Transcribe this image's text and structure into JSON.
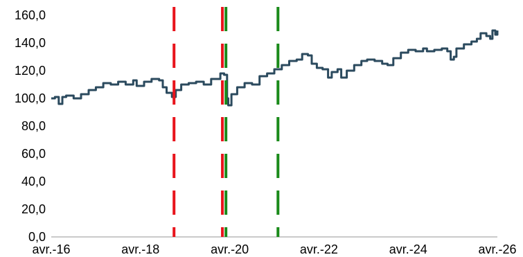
{
  "chart_data": {
    "type": "line",
    "title": "",
    "xlabel": "",
    "ylabel": "",
    "xlim": [
      "2016-04-01",
      "2026-04-01"
    ],
    "ylim": [
      0,
      160
    ],
    "grid": false,
    "legend": "none",
    "y_ticks": [
      0,
      20,
      40,
      60,
      80,
      100,
      120,
      140,
      160
    ],
    "y_tick_labels": [
      "0,0",
      "20,0",
      "40,0",
      "60,0",
      "80,0",
      "100,0",
      "120,0",
      "140,0",
      "160,0"
    ],
    "x_ticks": [
      "2016-04-01",
      "2018-04-01",
      "2020-04-01",
      "2022-04-01",
      "2024-04-01",
      "2026-04-01"
    ],
    "x_tick_labels": [
      "avr.-16",
      "avr.-18",
      "avr.-20",
      "avr.-22",
      "avr.-24",
      "avr.-26"
    ],
    "series": [
      {
        "color": "#2b4a5e",
        "points": [
          [
            "2016-04-01",
            100
          ],
          [
            "2016-05-01",
            101
          ],
          [
            "2016-06-01",
            96
          ],
          [
            "2016-07-01",
            101
          ],
          [
            "2016-08-01",
            102
          ],
          [
            "2016-10-01",
            100
          ],
          [
            "2016-12-01",
            103
          ],
          [
            "2017-02-01",
            106
          ],
          [
            "2017-04-01",
            108
          ],
          [
            "2017-06-01",
            111
          ],
          [
            "2017-08-01",
            110
          ],
          [
            "2017-10-01",
            112
          ],
          [
            "2017-12-01",
            110
          ],
          [
            "2018-02-01",
            113
          ],
          [
            "2018-03-01",
            109
          ],
          [
            "2018-05-01",
            112
          ],
          [
            "2018-07-01",
            114
          ],
          [
            "2018-09-01",
            113
          ],
          [
            "2018-10-01",
            108
          ],
          [
            "2018-11-01",
            104
          ],
          [
            "2018-12-15",
            101
          ],
          [
            "2019-01-15",
            106
          ],
          [
            "2019-03-01",
            110
          ],
          [
            "2019-05-01",
            111
          ],
          [
            "2019-07-01",
            112
          ],
          [
            "2019-09-01",
            110
          ],
          [
            "2019-11-01",
            114
          ],
          [
            "2020-01-15",
            118
          ],
          [
            "2020-02-15",
            117
          ],
          [
            "2020-03-10",
            100
          ],
          [
            "2020-03-20",
            95
          ],
          [
            "2020-04-15",
            103
          ],
          [
            "2020-06-01",
            108
          ],
          [
            "2020-08-01",
            111
          ],
          [
            "2020-10-01",
            110
          ],
          [
            "2020-12-01",
            116
          ],
          [
            "2021-02-01",
            118
          ],
          [
            "2021-04-01",
            121
          ],
          [
            "2021-06-01",
            124
          ],
          [
            "2021-08-01",
            127
          ],
          [
            "2021-10-01",
            128
          ],
          [
            "2021-11-15",
            132
          ],
          [
            "2022-01-01",
            131
          ],
          [
            "2022-02-01",
            125
          ],
          [
            "2022-03-15",
            122
          ],
          [
            "2022-05-01",
            121
          ],
          [
            "2022-06-15",
            115
          ],
          [
            "2022-07-15",
            119
          ],
          [
            "2022-09-01",
            121
          ],
          [
            "2022-10-01",
            115
          ],
          [
            "2022-11-15",
            120
          ],
          [
            "2023-01-15",
            124
          ],
          [
            "2023-03-15",
            127
          ],
          [
            "2023-05-01",
            128
          ],
          [
            "2023-07-01",
            127
          ],
          [
            "2023-09-01",
            125
          ],
          [
            "2023-10-15",
            124
          ],
          [
            "2023-12-01",
            129
          ],
          [
            "2024-02-01",
            133
          ],
          [
            "2024-04-01",
            135
          ],
          [
            "2024-06-01",
            134
          ],
          [
            "2024-08-01",
            136
          ],
          [
            "2024-09-01",
            134
          ],
          [
            "2024-11-01",
            135
          ],
          [
            "2025-01-01",
            136
          ],
          [
            "2025-02-15",
            134
          ],
          [
            "2025-03-15",
            128
          ],
          [
            "2025-04-10",
            130
          ],
          [
            "2025-05-01",
            136
          ],
          [
            "2025-07-01",
            139
          ],
          [
            "2025-09-01",
            141
          ],
          [
            "2025-10-15",
            143
          ],
          [
            "2025-11-15",
            147
          ],
          [
            "2026-01-01",
            145
          ],
          [
            "2026-02-01",
            143
          ],
          [
            "2026-02-20",
            149
          ],
          [
            "2026-03-15",
            146
          ],
          [
            "2026-04-01",
            149
          ]
        ]
      }
    ],
    "vertical_lines": [
      {
        "date": "2019-01-01",
        "color": "#e8141c",
        "style": "dashed"
      },
      {
        "date": "2020-02-01",
        "color": "#e8141c",
        "style": "dashed"
      },
      {
        "date": "2020-03-01",
        "color": "#1a8a1a",
        "style": "dashed"
      },
      {
        "date": "2021-05-01",
        "color": "#1a8a1a",
        "style": "dashed"
      }
    ]
  }
}
